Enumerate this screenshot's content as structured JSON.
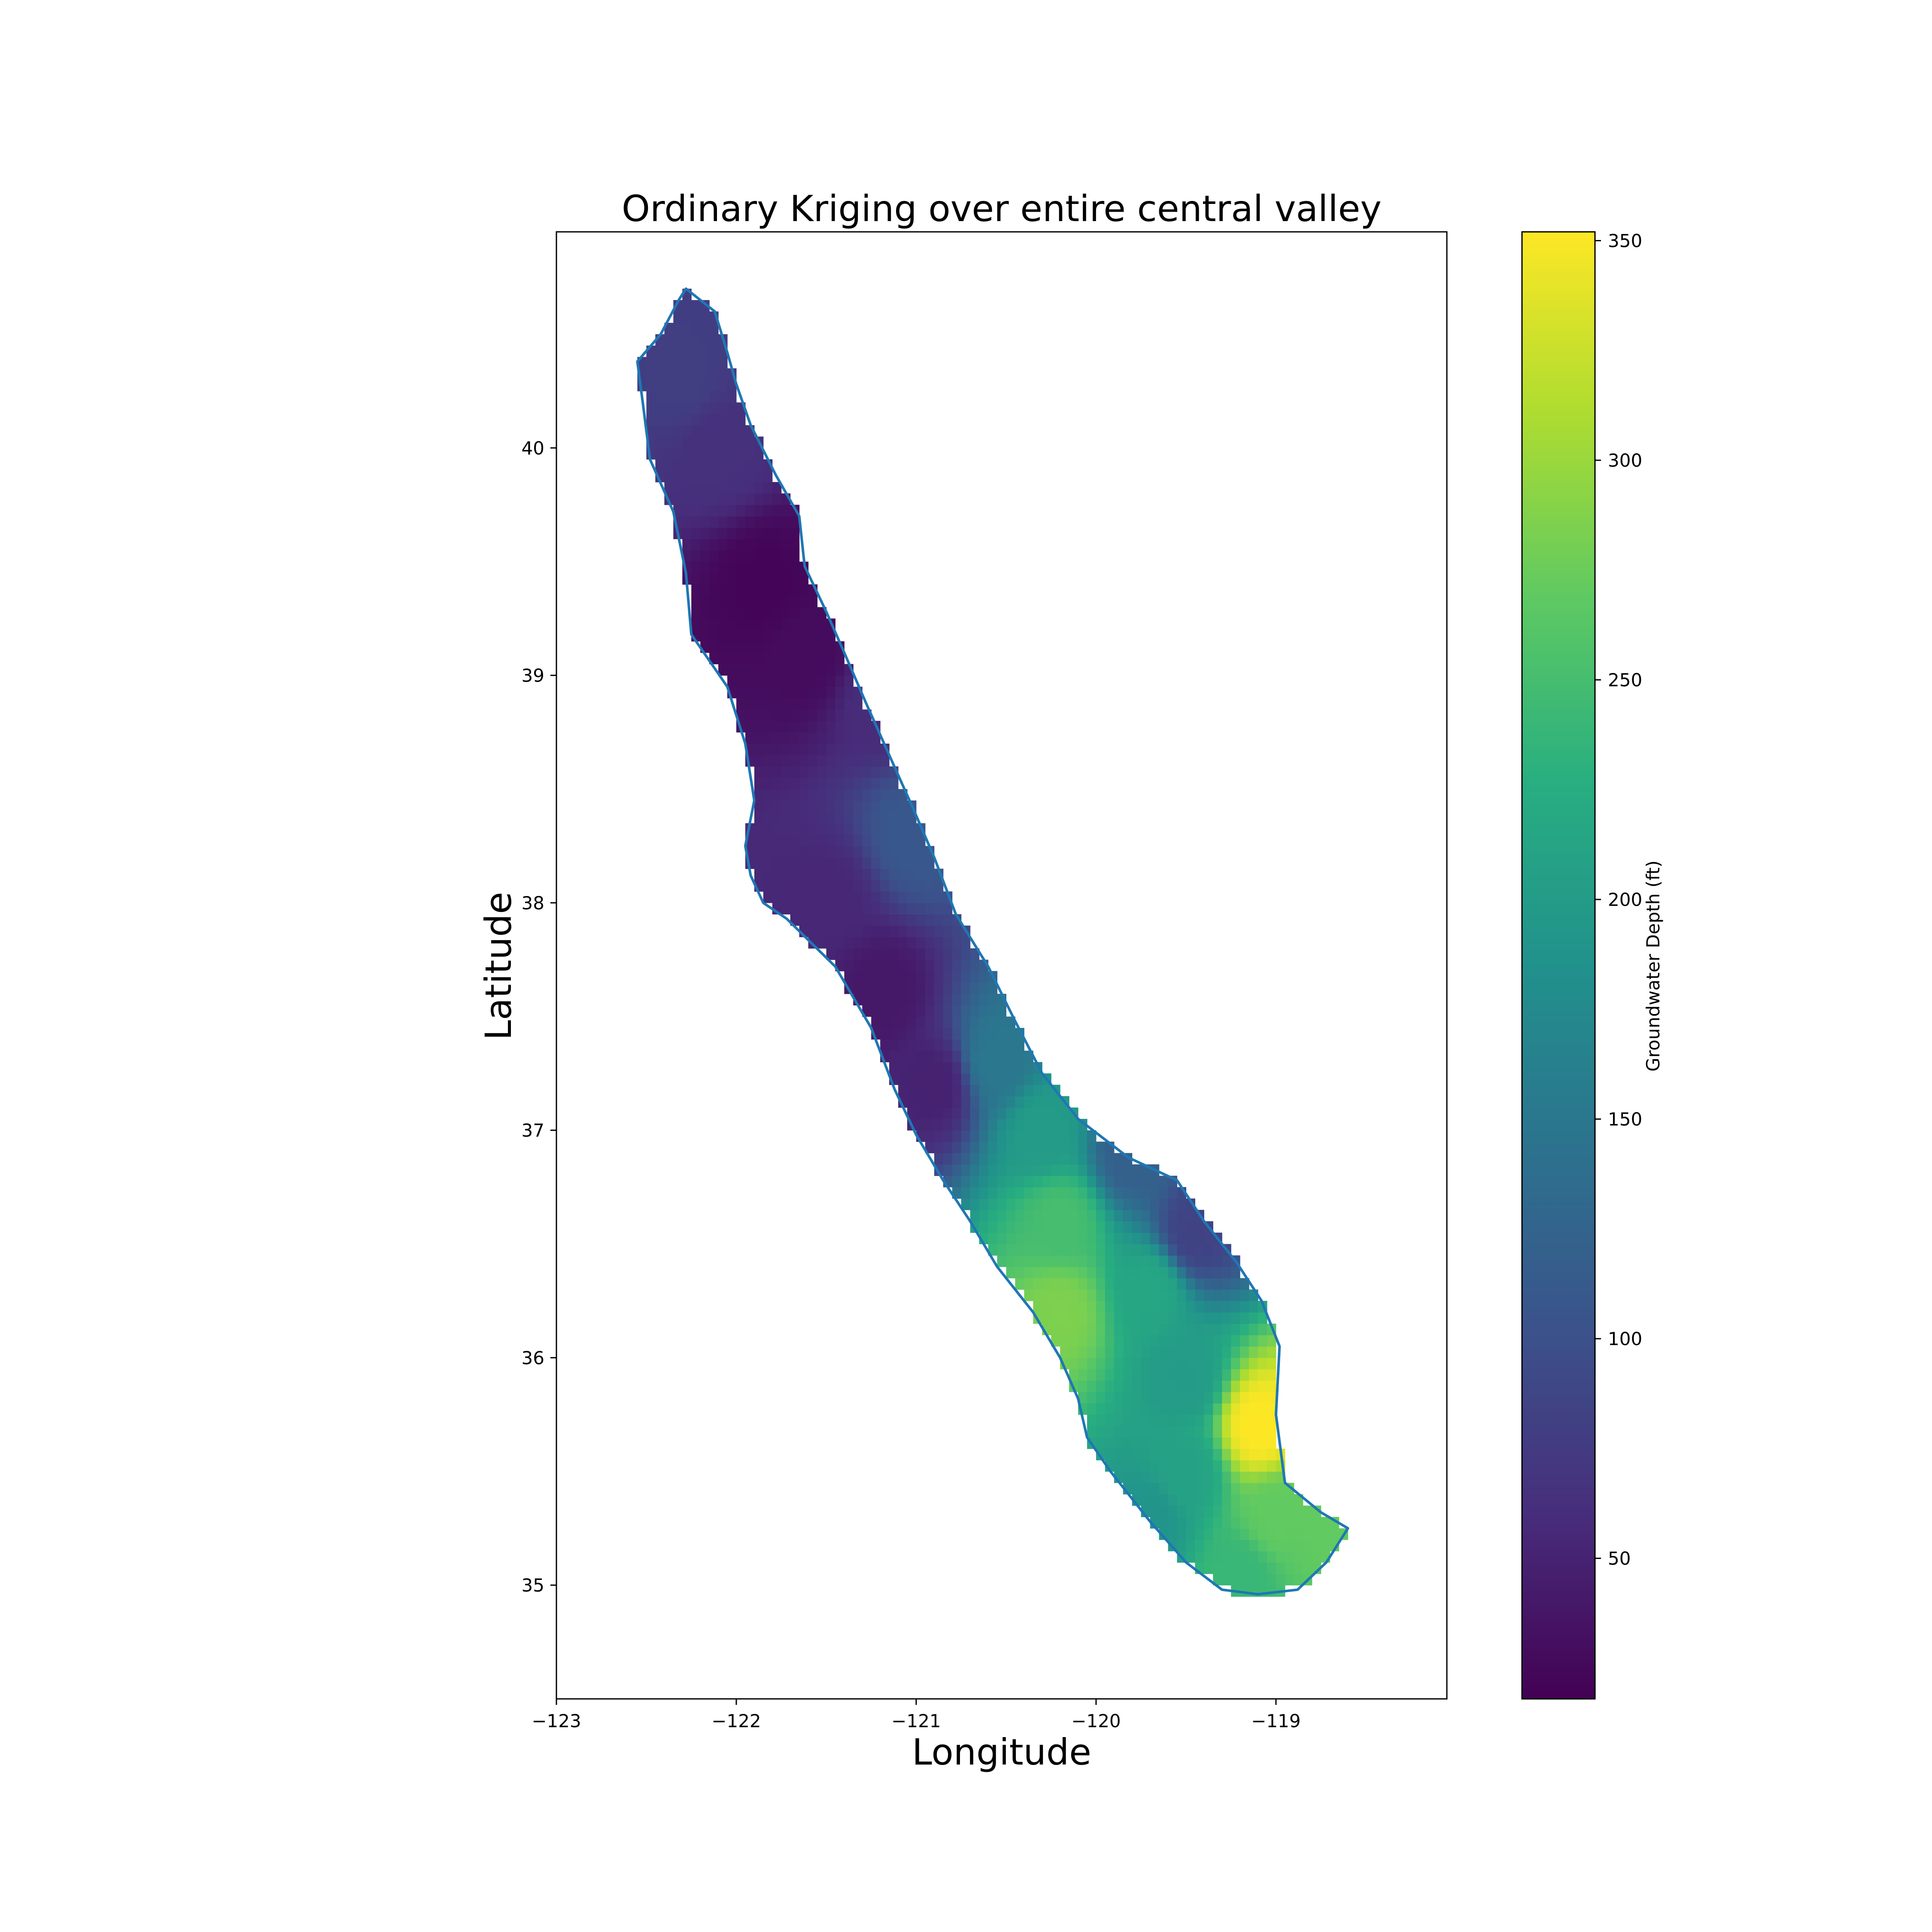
{
  "chart_data": {
    "type": "heatmap",
    "title": "Ordinary Kriging over entire central valley",
    "xlabel": "Longitude",
    "ylabel": "Latitude",
    "xlim": [
      -123,
      -118.05
    ],
    "ylim": [
      34.5,
      40.95
    ],
    "x_ticks": [
      -123,
      -122,
      -121,
      -120,
      -119
    ],
    "x_tick_labels": [
      "−123",
      "−122",
      "−121",
      "−120",
      "−119"
    ],
    "y_ticks": [
      35,
      36,
      37,
      38,
      39,
      40
    ],
    "y_tick_labels": [
      "35",
      "36",
      "37",
      "38",
      "39",
      "40"
    ],
    "grid": false,
    "colormap": "viridis",
    "colorbar": {
      "label": "Groundwater Depth (ft)",
      "range": [
        18,
        352
      ],
      "ticks": [
        50,
        100,
        150,
        200,
        250,
        300,
        350
      ],
      "tick_labels": [
        "50",
        "100",
        "150",
        "200",
        "250",
        "300",
        "350"
      ]
    },
    "valley_outline": [
      [
        -122.28,
        40.7
      ],
      [
        -122.12,
        40.6
      ],
      [
        -122.05,
        40.42
      ],
      [
        -122.0,
        40.28
      ],
      [
        -121.92,
        40.1
      ],
      [
        -121.78,
        39.88
      ],
      [
        -121.65,
        39.7
      ],
      [
        -121.62,
        39.48
      ],
      [
        -121.5,
        39.28
      ],
      [
        -121.4,
        39.1
      ],
      [
        -121.28,
        38.88
      ],
      [
        -121.15,
        38.65
      ],
      [
        -121.02,
        38.42
      ],
      [
        -120.9,
        38.2
      ],
      [
        -120.78,
        37.95
      ],
      [
        -120.6,
        37.72
      ],
      [
        -120.45,
        37.48
      ],
      [
        -120.3,
        37.25
      ],
      [
        -120.1,
        37.05
      ],
      [
        -119.82,
        36.88
      ],
      [
        -119.55,
        36.78
      ],
      [
        -119.4,
        36.6
      ],
      [
        -119.22,
        36.42
      ],
      [
        -119.08,
        36.25
      ],
      [
        -118.98,
        36.05
      ],
      [
        -119.0,
        35.75
      ],
      [
        -118.95,
        35.45
      ],
      [
        -118.75,
        35.32
      ],
      [
        -118.6,
        35.25
      ],
      [
        -118.72,
        35.1
      ],
      [
        -118.88,
        34.98
      ],
      [
        -119.1,
        34.96
      ],
      [
        -119.3,
        34.98
      ],
      [
        -119.5,
        35.1
      ],
      [
        -119.7,
        35.28
      ],
      [
        -119.92,
        35.5
      ],
      [
        -120.05,
        35.65
      ],
      [
        -120.1,
        35.82
      ],
      [
        -120.2,
        36.0
      ],
      [
        -120.35,
        36.2
      ],
      [
        -120.55,
        36.4
      ],
      [
        -120.7,
        36.6
      ],
      [
        -120.85,
        36.78
      ],
      [
        -121.0,
        36.98
      ],
      [
        -121.12,
        37.18
      ],
      [
        -121.25,
        37.45
      ],
      [
        -121.45,
        37.72
      ],
      [
        -121.72,
        37.93
      ],
      [
        -121.85,
        38.0
      ],
      [
        -121.92,
        38.12
      ],
      [
        -121.95,
        38.25
      ],
      [
        -121.9,
        38.45
      ],
      [
        -121.95,
        38.7
      ],
      [
        -122.05,
        38.95
      ],
      [
        -122.25,
        39.18
      ],
      [
        -122.28,
        39.45
      ],
      [
        -122.35,
        39.72
      ],
      [
        -122.48,
        39.95
      ],
      [
        -122.52,
        40.2
      ],
      [
        -122.55,
        40.38
      ],
      [
        -122.42,
        40.5
      ],
      [
        -122.32,
        40.65
      ]
    ],
    "field_control_points": [
      [
        -122.3,
        40.3,
        80
      ],
      [
        -122.1,
        40.0,
        65
      ],
      [
        -121.85,
        39.4,
        22
      ],
      [
        -121.6,
        39.1,
        28
      ],
      [
        -121.2,
        38.9,
        60
      ],
      [
        -121.0,
        38.3,
        110
      ],
      [
        -121.5,
        38.0,
        55
      ],
      [
        -121.2,
        37.6,
        40
      ],
      [
        -120.9,
        37.2,
        50
      ],
      [
        -120.55,
        37.3,
        150
      ],
      [
        -120.3,
        37.0,
        200
      ],
      [
        -119.8,
        36.9,
        120
      ],
      [
        -119.45,
        36.55,
        85
      ],
      [
        -120.2,
        36.6,
        250
      ],
      [
        -120.2,
        36.2,
        285
      ],
      [
        -119.7,
        36.3,
        215
      ],
      [
        -119.5,
        35.9,
        200
      ],
      [
        -119.1,
        35.7,
        352
      ],
      [
        -119.5,
        35.5,
        210
      ],
      [
        -119.0,
        35.3,
        270
      ],
      [
        -119.2,
        35.05,
        240
      ],
      [
        -118.7,
        35.25,
        270
      ],
      [
        -119.7,
        35.3,
        190
      ]
    ]
  }
}
